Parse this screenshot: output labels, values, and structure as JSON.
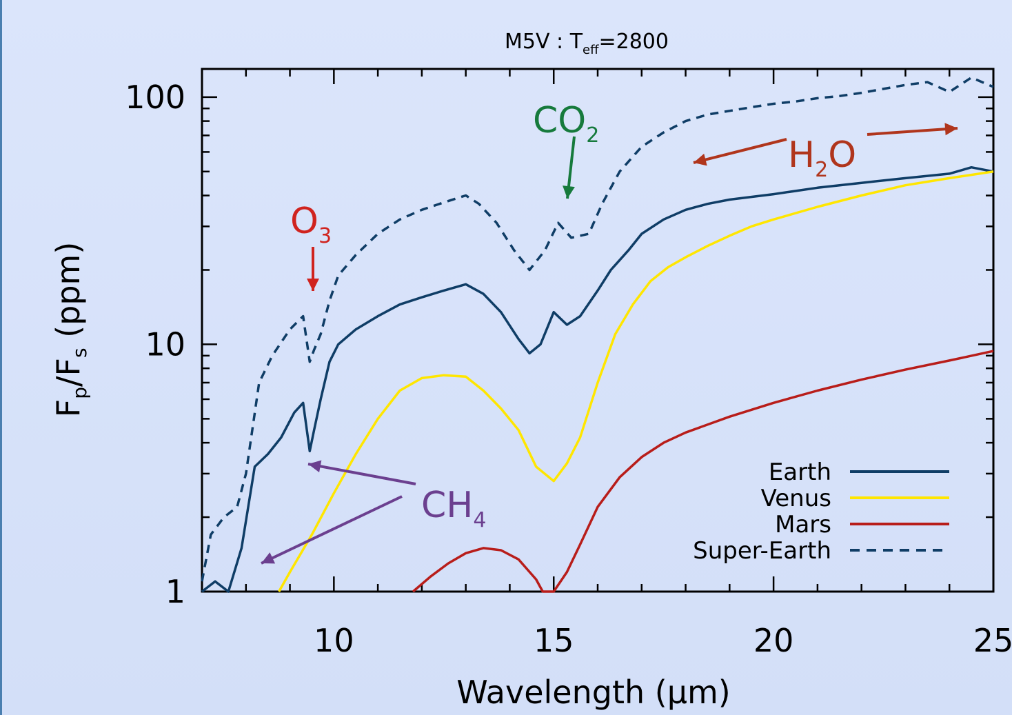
{
  "chart_data": {
    "type": "line",
    "title_main": "M5V : T",
    "title_sub": "eff",
    "title_value": "=2800",
    "xlabel": "Wavelength (μm)",
    "ylabel": "F",
    "ylabel_sub_p": "p",
    "ylabel_sub_s": "s",
    "ylabel_units": " (ppm)",
    "xscale": "linear",
    "yscale": "log",
    "xlim": [
      7,
      25
    ],
    "ylim": [
      1,
      130
    ],
    "xticks": [
      10,
      15,
      20,
      25
    ],
    "xtick_labels": [
      "10",
      "15",
      "20",
      "25"
    ],
    "yticks": [
      1,
      10,
      100
    ],
    "ytick_labels": [
      "1",
      "10",
      "100"
    ],
    "legend_position": "lower-right",
    "series": [
      {
        "name": "Earth",
        "color": "#0f3d66",
        "dash": "solid",
        "x": [
          7.0,
          7.3,
          7.6,
          7.9,
          8.2,
          8.5,
          8.8,
          9.1,
          9.3,
          9.45,
          9.55,
          9.7,
          9.9,
          10.1,
          10.5,
          11.0,
          11.5,
          12.0,
          12.5,
          13.0,
          13.4,
          13.8,
          14.2,
          14.45,
          14.7,
          15.0,
          15.3,
          15.6,
          16.0,
          16.3,
          16.7,
          17.0,
          17.5,
          18.0,
          18.5,
          19.0,
          20.0,
          21.0,
          22.0,
          23.0,
          24.0,
          24.5,
          25.0
        ],
        "y": [
          1.0,
          1.1,
          1.0,
          1.5,
          3.2,
          3.6,
          4.2,
          5.3,
          5.8,
          3.7,
          4.5,
          6.0,
          8.5,
          10.0,
          11.5,
          13.0,
          14.5,
          15.5,
          16.5,
          17.5,
          16.0,
          13.5,
          10.5,
          9.2,
          10.0,
          13.5,
          12.0,
          13.0,
          16.5,
          20.0,
          24.0,
          28.0,
          32.0,
          35.0,
          37.0,
          38.5,
          40.5,
          43.0,
          45.0,
          47.0,
          49.0,
          52.0,
          50.0
        ]
      },
      {
        "name": "Venus",
        "color": "#ffe600",
        "dash": "solid",
        "x": [
          8.75,
          9.0,
          9.5,
          10.0,
          10.5,
          11.0,
          11.5,
          12.0,
          12.5,
          13.0,
          13.4,
          13.8,
          14.2,
          14.6,
          15.0,
          15.3,
          15.6,
          16.0,
          16.4,
          16.8,
          17.2,
          17.6,
          18.0,
          18.5,
          19.0,
          19.5,
          20.0,
          21.0,
          22.0,
          23.0,
          24.0,
          25.0
        ],
        "y": [
          1.0,
          1.2,
          1.7,
          2.5,
          3.6,
          5.0,
          6.5,
          7.3,
          7.5,
          7.4,
          6.5,
          5.5,
          4.5,
          3.2,
          2.8,
          3.3,
          4.2,
          7.0,
          11.0,
          14.5,
          18.0,
          20.5,
          22.5,
          25.0,
          27.5,
          30.0,
          32.0,
          36.0,
          40.0,
          44.0,
          47.0,
          50.0
        ]
      },
      {
        "name": "Mars",
        "color": "#b81d1a",
        "dash": "solid",
        "x": [
          11.8,
          12.2,
          12.6,
          13.0,
          13.4,
          13.8,
          14.2,
          14.6,
          14.75,
          15.0,
          15.3,
          15.6,
          16.0,
          16.5,
          17.0,
          17.5,
          18.0,
          19.0,
          20.0,
          21.0,
          22.0,
          23.0,
          24.0,
          25.0
        ],
        "y": [
          1.0,
          1.15,
          1.3,
          1.43,
          1.5,
          1.47,
          1.35,
          1.12,
          1.0,
          1.0,
          1.2,
          1.55,
          2.2,
          2.9,
          3.5,
          4.0,
          4.4,
          5.1,
          5.8,
          6.5,
          7.2,
          7.9,
          8.6,
          9.4
        ]
      },
      {
        "name": "Super-Earth",
        "color": "#0f3d66",
        "dash": "dashed",
        "x": [
          7.0,
          7.2,
          7.5,
          7.8,
          8.0,
          8.3,
          8.6,
          9.0,
          9.3,
          9.45,
          9.55,
          9.7,
          9.9,
          10.1,
          10.5,
          11.0,
          11.5,
          12.0,
          12.5,
          13.0,
          13.3,
          13.7,
          14.1,
          14.45,
          14.8,
          15.1,
          15.4,
          15.8,
          16.1,
          16.5,
          17.0,
          17.5,
          18.0,
          18.5,
          19.0,
          19.5,
          20.0,
          20.5,
          21.0,
          21.5,
          22.0,
          22.5,
          23.0,
          23.5,
          24.0,
          24.5,
          25.0
        ],
        "y": [
          1.1,
          1.7,
          2.0,
          2.2,
          3.0,
          7.0,
          9.0,
          11.5,
          13.0,
          8.5,
          9.5,
          11.0,
          15.0,
          19.0,
          23.0,
          28.0,
          32.0,
          35.0,
          37.5,
          40.0,
          37.0,
          31.0,
          24.0,
          20.0,
          24.0,
          31.0,
          27.0,
          28.0,
          37.0,
          50.0,
          63.0,
          72.0,
          80.0,
          85.0,
          88.0,
          91.0,
          94.0,
          96.0,
          99.0,
          101.0,
          104.0,
          108.0,
          112.0,
          115.0,
          105.0,
          120.0,
          110.0
        ]
      }
    ],
    "annotations": [
      {
        "text": "CO",
        "sub": "2",
        "color": "#167a3c"
      },
      {
        "text": "H",
        "sub": "2",
        "tail": "O",
        "color": "#b0351c"
      },
      {
        "text": "O",
        "sub": "3",
        "color": "#d0231e"
      },
      {
        "text": "CH",
        "sub": "4",
        "color": "#6b3f8f"
      }
    ]
  }
}
